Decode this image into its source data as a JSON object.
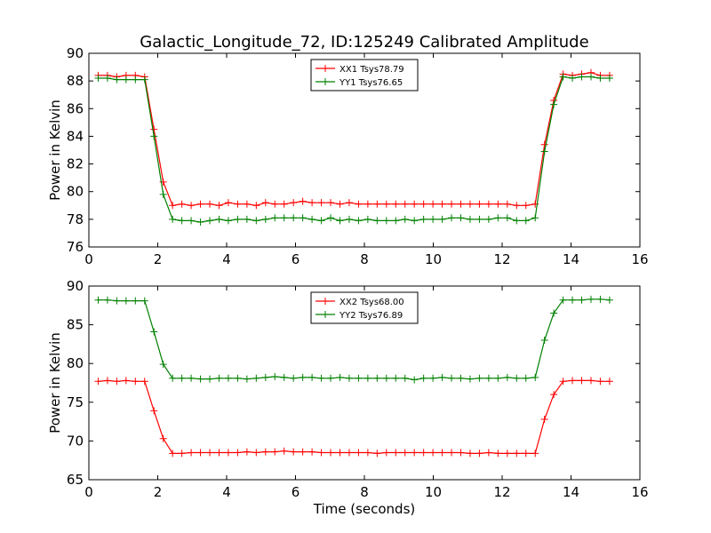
{
  "title": "Galactic_Longitude_72, ID:125249 Calibrated Amplitude",
  "xlabel": "Time (seconds)",
  "chart_data": [
    {
      "type": "line",
      "ylabel": "Power in Kelvin",
      "xlim": [
        0,
        16
      ],
      "ylim": [
        76,
        90
      ],
      "xticks": [
        0,
        2,
        4,
        6,
        8,
        10,
        12,
        14,
        16
      ],
      "yticks": [
        76,
        78,
        80,
        82,
        84,
        86,
        88,
        90
      ],
      "legend_position": "top-center",
      "grid": false,
      "series": [
        {
          "name": "XX1 Tsys78.79",
          "color": "#ff0000",
          "x": [
            0.27,
            0.54,
            0.81,
            1.08,
            1.35,
            1.62,
            1.89,
            2.16,
            2.43,
            2.7,
            2.97,
            3.24,
            3.51,
            3.78,
            4.05,
            4.32,
            4.59,
            4.86,
            5.13,
            5.4,
            5.67,
            5.94,
            6.21,
            6.48,
            6.75,
            7.02,
            7.29,
            7.56,
            7.83,
            8.1,
            8.37,
            8.64,
            8.91,
            9.18,
            9.45,
            9.72,
            9.99,
            10.26,
            10.53,
            10.8,
            11.07,
            11.34,
            11.61,
            11.88,
            12.15,
            12.42,
            12.69,
            12.96,
            13.23,
            13.5,
            13.77,
            14.04,
            14.31,
            14.58,
            14.85,
            15.12
          ],
          "y": [
            88.4,
            88.4,
            88.3,
            88.4,
            88.4,
            88.3,
            84.5,
            80.7,
            79.0,
            79.1,
            79.0,
            79.1,
            79.1,
            79.0,
            79.2,
            79.1,
            79.1,
            79.0,
            79.2,
            79.1,
            79.1,
            79.2,
            79.3,
            79.2,
            79.2,
            79.2,
            79.1,
            79.2,
            79.1,
            79.1,
            79.1,
            79.1,
            79.1,
            79.1,
            79.1,
            79.1,
            79.1,
            79.1,
            79.1,
            79.1,
            79.1,
            79.1,
            79.1,
            79.1,
            79.1,
            79.0,
            79.0,
            79.1,
            83.4,
            86.6,
            88.5,
            88.4,
            88.5,
            88.6,
            88.4,
            88.4
          ]
        },
        {
          "name": "YY1 Tsys76.65",
          "color": "#008000",
          "x": [
            0.27,
            0.54,
            0.81,
            1.08,
            1.35,
            1.62,
            1.89,
            2.16,
            2.43,
            2.7,
            2.97,
            3.24,
            3.51,
            3.78,
            4.05,
            4.32,
            4.59,
            4.86,
            5.13,
            5.4,
            5.67,
            5.94,
            6.21,
            6.48,
            6.75,
            7.02,
            7.29,
            7.56,
            7.83,
            8.1,
            8.37,
            8.64,
            8.91,
            9.18,
            9.45,
            9.72,
            9.99,
            10.26,
            10.53,
            10.8,
            11.07,
            11.34,
            11.61,
            11.88,
            12.15,
            12.42,
            12.69,
            12.96,
            13.23,
            13.5,
            13.77,
            14.04,
            14.31,
            14.58,
            14.85,
            15.12
          ],
          "y": [
            88.2,
            88.2,
            88.1,
            88.1,
            88.1,
            88.1,
            84.0,
            79.8,
            78.0,
            77.9,
            77.9,
            77.8,
            77.9,
            78.0,
            77.9,
            78.0,
            78.0,
            77.9,
            78.0,
            78.1,
            78.1,
            78.1,
            78.1,
            78.0,
            77.9,
            78.1,
            77.9,
            78.0,
            77.9,
            78.0,
            77.9,
            77.9,
            77.9,
            78.0,
            77.9,
            78.0,
            78.0,
            78.0,
            78.1,
            78.1,
            78.0,
            78.0,
            78.0,
            78.1,
            78.1,
            77.9,
            77.9,
            78.1,
            82.9,
            86.3,
            88.3,
            88.2,
            88.3,
            88.3,
            88.2,
            88.2
          ]
        }
      ]
    },
    {
      "type": "line",
      "ylabel": "Power in Kelvin",
      "xlim": [
        0,
        16
      ],
      "ylim": [
        65,
        90
      ],
      "xticks": [
        0,
        2,
        4,
        6,
        8,
        10,
        12,
        14,
        16
      ],
      "yticks": [
        65,
        70,
        75,
        80,
        85,
        90
      ],
      "legend_position": "top-center",
      "grid": false,
      "series": [
        {
          "name": "XX2 Tsys68.00",
          "color": "#ff0000",
          "x": [
            0.27,
            0.54,
            0.81,
            1.08,
            1.35,
            1.62,
            1.89,
            2.16,
            2.43,
            2.7,
            2.97,
            3.24,
            3.51,
            3.78,
            4.05,
            4.32,
            4.59,
            4.86,
            5.13,
            5.4,
            5.67,
            5.94,
            6.21,
            6.48,
            6.75,
            7.02,
            7.29,
            7.56,
            7.83,
            8.1,
            8.37,
            8.64,
            8.91,
            9.18,
            9.45,
            9.72,
            9.99,
            10.26,
            10.53,
            10.8,
            11.07,
            11.34,
            11.61,
            11.88,
            12.15,
            12.42,
            12.69,
            12.96,
            13.23,
            13.5,
            13.77,
            14.04,
            14.31,
            14.58,
            14.85,
            15.12
          ],
          "y": [
            77.7,
            77.8,
            77.7,
            77.8,
            77.7,
            77.7,
            73.9,
            70.3,
            68.4,
            68.4,
            68.5,
            68.5,
            68.5,
            68.5,
            68.5,
            68.5,
            68.6,
            68.5,
            68.6,
            68.6,
            68.7,
            68.6,
            68.6,
            68.6,
            68.5,
            68.5,
            68.5,
            68.5,
            68.5,
            68.5,
            68.4,
            68.5,
            68.5,
            68.5,
            68.5,
            68.5,
            68.5,
            68.5,
            68.5,
            68.5,
            68.4,
            68.4,
            68.5,
            68.4,
            68.4,
            68.4,
            68.4,
            68.4,
            72.8,
            76.0,
            77.7,
            77.8,
            77.8,
            77.8,
            77.7,
            77.7
          ]
        },
        {
          "name": "YY2 Tsys76.89",
          "color": "#008000",
          "x": [
            0.27,
            0.54,
            0.81,
            1.08,
            1.35,
            1.62,
            1.89,
            2.16,
            2.43,
            2.7,
            2.97,
            3.24,
            3.51,
            3.78,
            4.05,
            4.32,
            4.59,
            4.86,
            5.13,
            5.4,
            5.67,
            5.94,
            6.21,
            6.48,
            6.75,
            7.02,
            7.29,
            7.56,
            7.83,
            8.1,
            8.37,
            8.64,
            8.91,
            9.18,
            9.45,
            9.72,
            9.99,
            10.26,
            10.53,
            10.8,
            11.07,
            11.34,
            11.61,
            11.88,
            12.15,
            12.42,
            12.69,
            12.96,
            13.23,
            13.5,
            13.77,
            14.04,
            14.31,
            14.58,
            14.85,
            15.12
          ],
          "y": [
            88.2,
            88.2,
            88.1,
            88.1,
            88.1,
            88.1,
            84.1,
            79.9,
            78.1,
            78.1,
            78.1,
            78.0,
            78.0,
            78.1,
            78.1,
            78.1,
            78.0,
            78.1,
            78.2,
            78.3,
            78.2,
            78.1,
            78.2,
            78.2,
            78.1,
            78.1,
            78.2,
            78.1,
            78.1,
            78.1,
            78.1,
            78.1,
            78.1,
            78.1,
            77.9,
            78.1,
            78.1,
            78.2,
            78.1,
            78.1,
            78.0,
            78.1,
            78.1,
            78.1,
            78.2,
            78.1,
            78.1,
            78.2,
            83.0,
            86.5,
            88.2,
            88.2,
            88.2,
            88.3,
            88.3,
            88.2
          ]
        }
      ]
    }
  ]
}
